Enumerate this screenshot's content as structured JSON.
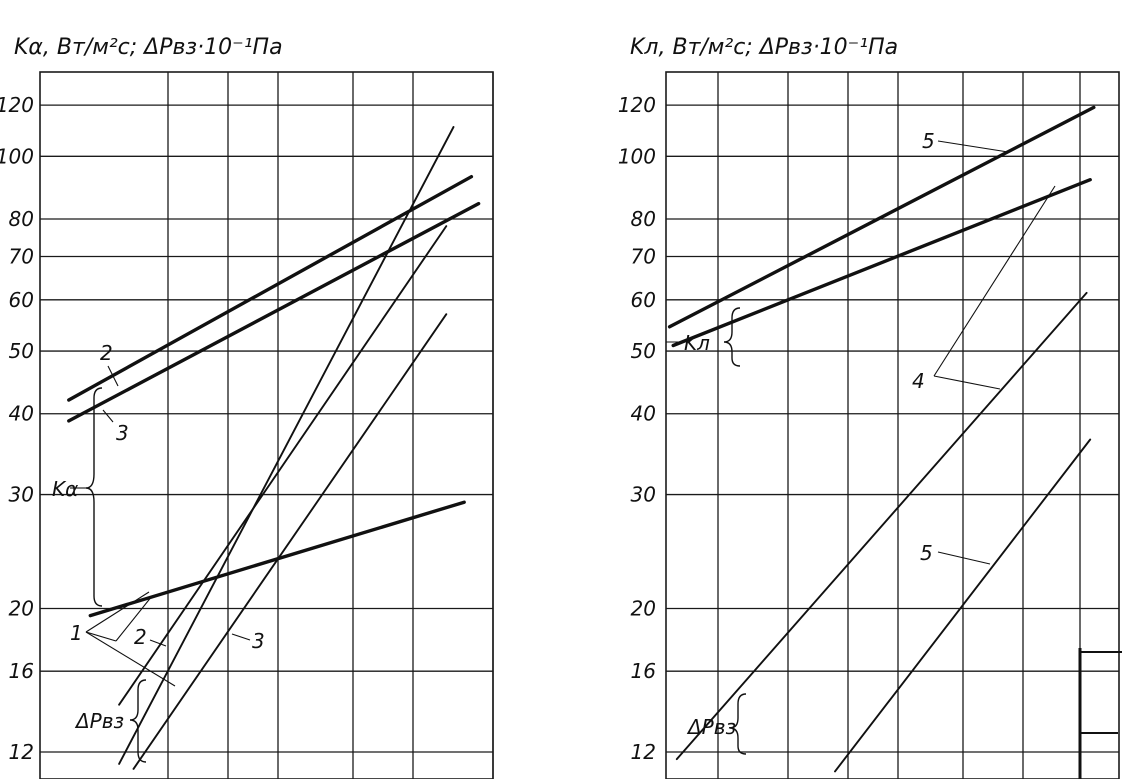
{
  "chart_data": [
    {
      "type": "line",
      "ylabel": "Kα, Вт/м²с; ΔPвз·10⁻¹Па",
      "y_scale": "log",
      "ylim": [
        10.9,
        135
      ],
      "y_ticks": [
        12,
        16,
        20,
        30,
        40,
        50,
        60,
        70,
        80,
        100,
        120
      ],
      "y_tick_labels": [
        "12",
        "16",
        "20",
        "30",
        "40",
        "50",
        "60",
        "70",
        "80",
        "100",
        "120"
      ],
      "x_range": [
        0,
        6.3
      ],
      "grid": true,
      "series": [
        {
          "group": "Kα",
          "label": "1",
          "style": "thick",
          "x": [
            0.7,
            5.9
          ],
          "y": [
            19.5,
            29.2
          ]
        },
        {
          "group": "Kα",
          "label": "2",
          "style": "thick",
          "x": [
            0.4,
            6.0
          ],
          "y": [
            42.0,
            93.0
          ]
        },
        {
          "group": "Kα",
          "label": "3",
          "style": "thick",
          "x": [
            0.4,
            6.1
          ],
          "y": [
            39.0,
            84.5
          ]
        },
        {
          "group": "ΔPвз",
          "label": "1",
          "style": "thin",
          "x": [
            1.1,
            5.75
          ],
          "y": [
            11.5,
            111.0
          ]
        },
        {
          "group": "ΔPвз",
          "label": "2",
          "style": "thin",
          "x": [
            1.1,
            5.65
          ],
          "y": [
            14.2,
            78.0
          ]
        },
        {
          "group": "ΔPвз",
          "label": "3",
          "style": "thin",
          "x": [
            1.3,
            5.65
          ],
          "y": [
            11.3,
            57.0
          ]
        }
      ],
      "annotations": {
        "group_k": "Kα",
        "group_dp": "ΔPвз",
        "curve_labels": [
          "1",
          "2",
          "3",
          "2",
          "3"
        ]
      }
    },
    {
      "type": "line",
      "ylabel": "Kл, Вт/м²с; ΔPвз·10⁻¹Па",
      "y_scale": "log",
      "ylim": [
        10.9,
        135
      ],
      "y_ticks": [
        12,
        16,
        20,
        30,
        40,
        50,
        60,
        70,
        80,
        100,
        120
      ],
      "y_tick_labels": [
        "12",
        "16",
        "20",
        "30",
        "40",
        "50",
        "60",
        "70",
        "80",
        "100",
        "120"
      ],
      "x_range": [
        0,
        6.3
      ],
      "grid": true,
      "series": [
        {
          "group": "Kл",
          "label": "5",
          "style": "thick",
          "x": [
            0.05,
            5.95
          ],
          "y": [
            54.5,
            119.0
          ]
        },
        {
          "group": "Kл",
          "label": "4",
          "style": "thick",
          "x": [
            0.1,
            5.9
          ],
          "y": [
            51.0,
            92.0
          ]
        },
        {
          "group": "ΔPвз",
          "label": "4",
          "style": "thin",
          "x": [
            0.15,
            5.85
          ],
          "y": [
            11.7,
            61.5
          ]
        },
        {
          "group": "ΔPвз",
          "label": "5",
          "style": "thin",
          "x": [
            2.35,
            5.9
          ],
          "y": [
            11.2,
            36.5
          ]
        }
      ],
      "annotations": {
        "group_k": "Kл",
        "group_dp": "ΔPвз",
        "curve_labels": [
          "5",
          "4",
          "5"
        ]
      }
    }
  ]
}
